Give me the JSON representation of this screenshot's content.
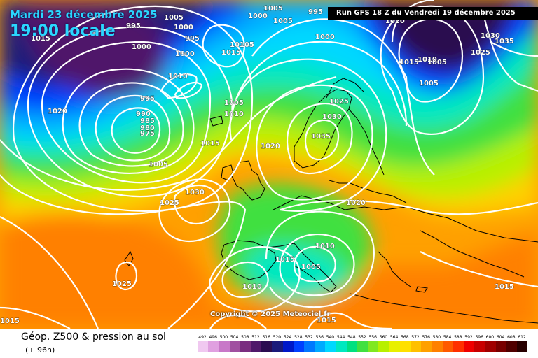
{
  "header": {
    "date_label": "Mardi 23 décembre 2025",
    "local_time_label": "19:00 locale",
    "run_label": "Run GFS 18 Z du Vendredi 19 décembre 2025"
  },
  "copyright": "Copyright © 2025 Meteociel.fr",
  "footer": {
    "title": "Géop. Z500 & pression au sol",
    "subtitle": "(+ 96h)"
  },
  "legend": {
    "values": [
      "492",
      "496",
      "500",
      "504",
      "508",
      "512",
      "516",
      "520",
      "524",
      "528",
      "532",
      "536",
      "540",
      "544",
      "548",
      "552",
      "556",
      "560",
      "564",
      "568",
      "572",
      "576",
      "580",
      "584",
      "588",
      "592",
      "596",
      "600",
      "604",
      "608",
      "612"
    ],
    "colors": [
      "#f0c8f0",
      "#e0a0e0",
      "#c878c8",
      "#a050a0",
      "#7a2e80",
      "#50186a",
      "#2a0c50",
      "#1a1a7a",
      "#0018c8",
      "#0040ff",
      "#0078ff",
      "#00aaff",
      "#00d8ff",
      "#00e8c0",
      "#00e080",
      "#40e040",
      "#80e820",
      "#b8f000",
      "#e8f000",
      "#ffe000",
      "#ffc000",
      "#ffa000",
      "#ff8000",
      "#ff5a00",
      "#ff3000",
      "#f00000",
      "#c80000",
      "#a00000",
      "#780000",
      "#500000",
      "#280000"
    ]
  },
  "pressure_labels": [
    {
      "text": "1005"
    },
    {
      "text": "995"
    },
    {
      "text": "1000"
    },
    {
      "text": "1015"
    },
    {
      "text": "995"
    },
    {
      "text": "1000"
    },
    {
      "text": "1000"
    },
    {
      "text": "1015"
    },
    {
      "text": "10105"
    },
    {
      "text": "1005"
    },
    {
      "text": "1000"
    },
    {
      "text": "995"
    },
    {
      "text": "1005"
    },
    {
      "text": "1000"
    },
    {
      "text": "1020"
    },
    {
      "text": "1030"
    },
    {
      "text": "1035"
    },
    {
      "text": "1025"
    },
    {
      "text": "1010"
    },
    {
      "text": "1015"
    },
    {
      "text": "1005"
    },
    {
      "text": "1005"
    },
    {
      "text": "1010"
    },
    {
      "text": "995"
    },
    {
      "text": "990"
    },
    {
      "text": "1020"
    },
    {
      "text": "985"
    },
    {
      "text": "980"
    },
    {
      "text": "975"
    },
    {
      "text": "1005"
    },
    {
      "text": "1010"
    },
    {
      "text": "1025"
    },
    {
      "text": "1015"
    },
    {
      "text": "1030"
    },
    {
      "text": "1035"
    },
    {
      "text": "1020"
    },
    {
      "text": "1005"
    },
    {
      "text": "1030"
    },
    {
      "text": "1025"
    },
    {
      "text": "1020"
    },
    {
      "text": "1010"
    },
    {
      "text": "1015"
    },
    {
      "text": "1005"
    },
    {
      "text": "1025"
    },
    {
      "text": "1010"
    },
    {
      "text": "1015"
    },
    {
      "text": "1015"
    },
    {
      "text": "1015"
    },
    {
      "text": "1035"
    }
  ]
}
